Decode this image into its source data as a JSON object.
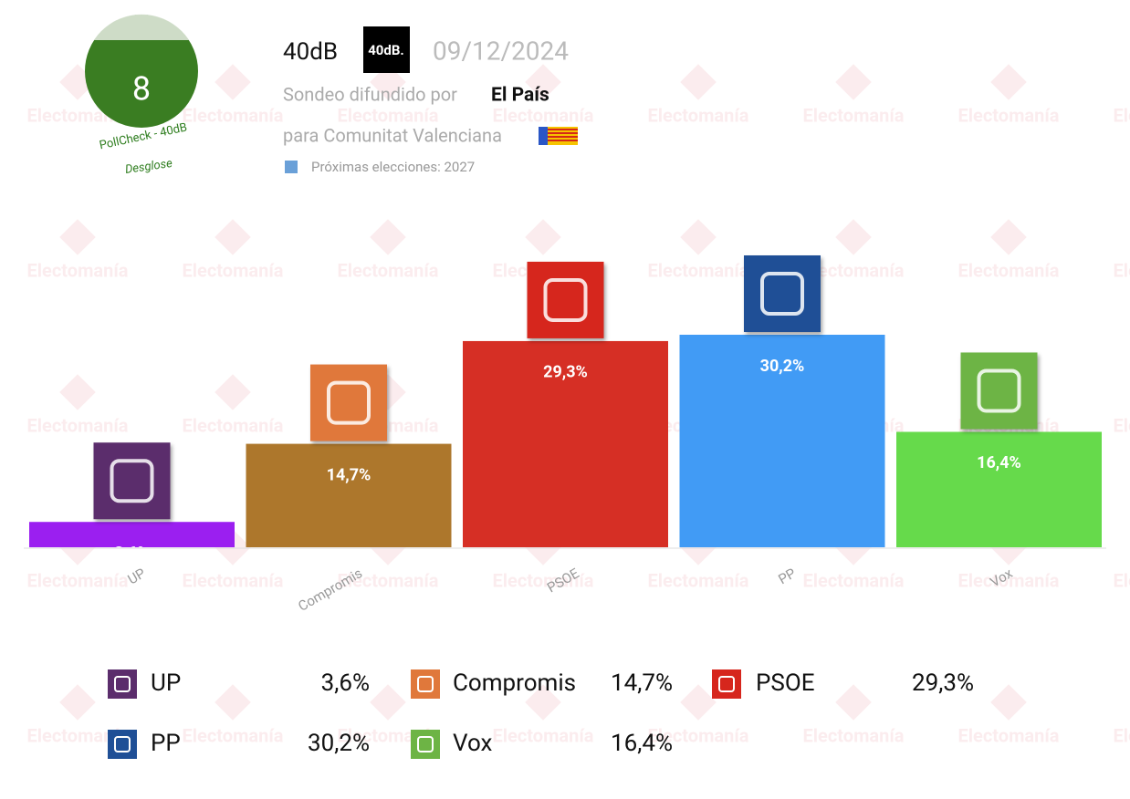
{
  "header": {
    "score": "8",
    "badge_label": "PollCheck - 40dB",
    "breakdown": "Desglose",
    "pollster": "40dB",
    "pollster_logo": "40dB.",
    "date": "09/12/2024",
    "published_by": "Sondeo difundido por",
    "media": "El País",
    "region": "para Comunitat Valenciana",
    "next_elections": "Próximas elecciones: 2027"
  },
  "watermark": "Electomanía",
  "chart_data": {
    "type": "bar",
    "categories": [
      "UP",
      "Compromis",
      "PSOE",
      "PP",
      "Vox"
    ],
    "values": [
      3.6,
      14.7,
      29.3,
      30.2,
      16.4
    ],
    "value_labels": [
      "3,6%",
      "14,7%",
      "29,3%",
      "30,2%",
      "16,4%"
    ],
    "colors": [
      "#9b1ff0",
      "#ad772c",
      "#d62f25",
      "#419bf5",
      "#66da4b"
    ],
    "logo_colors": [
      "#5b2d6c",
      "#e0783b",
      "#d6261d",
      "#1f4f96",
      "#6db445"
    ]
  }
}
